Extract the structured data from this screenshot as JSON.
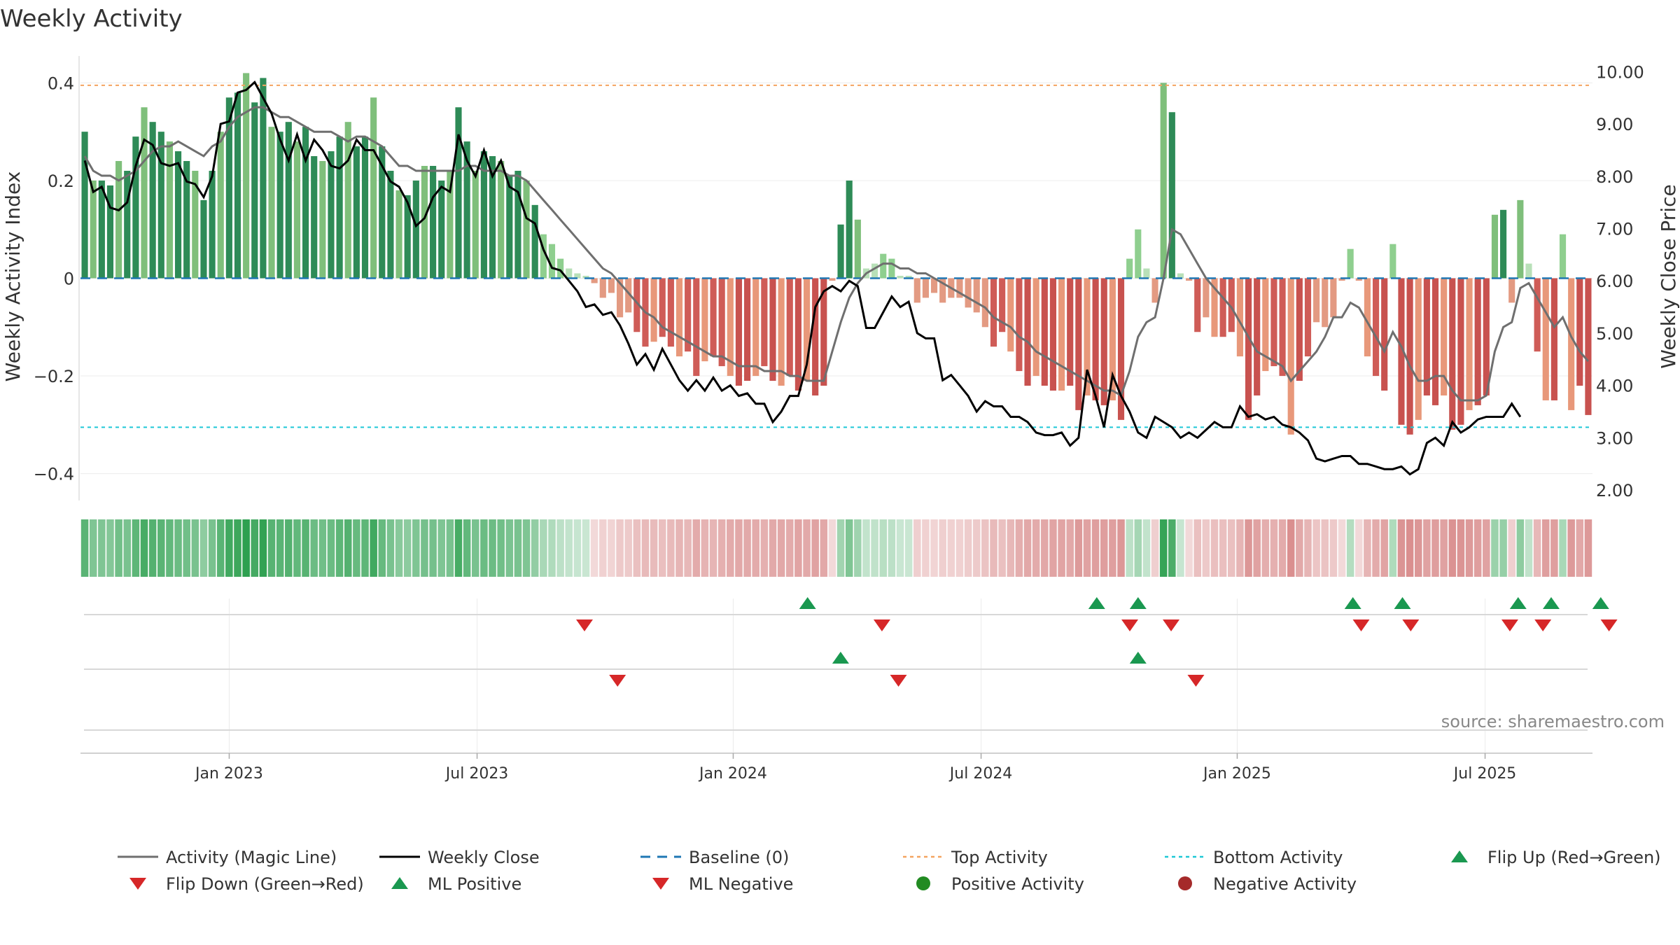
{
  "chart_data": {
    "type": "bar",
    "title": "Weekly Activity",
    "ylabel": "Weekly Activity Index",
    "y2label": "Weekly Close Price",
    "source": "source: sharemaestro.com",
    "ylim": [
      -0.455,
      0.455
    ],
    "y2lim": [
      1.8,
      10.3
    ],
    "yticks": [
      {
        "v": 0.4,
        "label": "0.4"
      },
      {
        "v": 0.2,
        "label": "0.2"
      },
      {
        "v": 0,
        "label": "0"
      },
      {
        "v": -0.2,
        "label": "−0.2"
      },
      {
        "v": -0.4,
        "label": "−0.4"
      }
    ],
    "y2ticks": [
      {
        "v": 10,
        "label": "10.00"
      },
      {
        "v": 9,
        "label": "9.00"
      },
      {
        "v": 8,
        "label": "8.00"
      },
      {
        "v": 7,
        "label": "7.00"
      },
      {
        "v": 6,
        "label": "6.00"
      },
      {
        "v": 5,
        "label": "5.00"
      },
      {
        "v": 4,
        "label": "4.00"
      },
      {
        "v": 3,
        "label": "3.00"
      },
      {
        "v": 2,
        "label": "2.00"
      }
    ],
    "xticks": [
      {
        "week": 18,
        "label": "Jan 2023"
      },
      {
        "week": 48,
        "label": "Jul 2023"
      },
      {
        "week": 79,
        "label": "Jan 2024"
      },
      {
        "week": 109,
        "label": "Jul 2024"
      },
      {
        "week": 140,
        "label": "Jan 2025"
      },
      {
        "week": 170,
        "label": "Jul 2025"
      }
    ],
    "weeks": 183,
    "top_activity": 0.395,
    "bottom_activity": -0.305,
    "activity": [
      0.3,
      0.2,
      0.2,
      0.19,
      0.24,
      0.22,
      0.29,
      0.35,
      0.32,
      0.3,
      0.28,
      0.26,
      0.24,
      0.22,
      0.16,
      0.22,
      0.3,
      0.37,
      0.38,
      0.42,
      0.36,
      0.41,
      0.31,
      0.3,
      0.32,
      0.28,
      0.31,
      0.25,
      0.24,
      0.26,
      0.29,
      0.32,
      0.27,
      0.29,
      0.37,
      0.27,
      0.22,
      0.18,
      0.17,
      0.2,
      0.23,
      0.23,
      0.2,
      0.22,
      0.35,
      0.28,
      0.22,
      0.26,
      0.25,
      0.24,
      0.21,
      0.22,
      0.2,
      0.15,
      0.09,
      0.07,
      0.04,
      0.02,
      0.01,
      0.005,
      -0.01,
      -0.04,
      -0.03,
      -0.08,
      -0.07,
      -0.11,
      -0.14,
      -0.13,
      -0.12,
      -0.14,
      -0.16,
      -0.15,
      -0.2,
      -0.17,
      -0.16,
      -0.18,
      -0.2,
      -0.22,
      -0.21,
      -0.2,
      -0.18,
      -0.21,
      -0.22,
      -0.2,
      -0.23,
      -0.21,
      -0.24,
      -0.22,
      -0.005,
      0.11,
      0.2,
      0.12,
      0.02,
      0.03,
      0.05,
      0.04,
      0.005,
      0.005,
      -0.05,
      -0.04,
      -0.03,
      -0.05,
      -0.04,
      -0.04,
      -0.06,
      -0.07,
      -0.1,
      -0.14,
      -0.11,
      -0.15,
      -0.19,
      -0.22,
      -0.2,
      -0.22,
      -0.23,
      -0.23,
      -0.22,
      -0.27,
      -0.24,
      -0.25,
      -0.26,
      -0.25,
      -0.29,
      0.04,
      0.1,
      0.02,
      -0.05,
      0.4,
      0.34,
      0.01,
      -0.005,
      -0.11,
      -0.08,
      -0.12,
      -0.12,
      -0.11,
      -0.16,
      -0.29,
      -0.24,
      -0.19,
      -0.18,
      -0.2,
      -0.32,
      -0.21,
      -0.16,
      -0.09,
      -0.1,
      -0.08,
      -0.005,
      0.06,
      -0.005,
      -0.16,
      -0.2,
      -0.23,
      0.07,
      -0.3,
      -0.32,
      -0.29,
      -0.24,
      -0.26,
      -0.24,
      -0.31,
      -0.3,
      -0.27,
      -0.26,
      -0.24,
      0.13,
      0.14,
      -0.05,
      0.16,
      0.03,
      -0.15,
      -0.25,
      -0.25,
      0.09,
      -0.27,
      -0.22,
      -0.28
    ],
    "magic_line": [
      0.25,
      0.22,
      0.21,
      0.21,
      0.2,
      0.21,
      0.22,
      0.24,
      0.26,
      0.27,
      0.27,
      0.28,
      0.27,
      0.26,
      0.25,
      0.27,
      0.28,
      0.31,
      0.33,
      0.34,
      0.35,
      0.35,
      0.34,
      0.33,
      0.33,
      0.32,
      0.31,
      0.3,
      0.3,
      0.3,
      0.29,
      0.28,
      0.29,
      0.29,
      0.28,
      0.27,
      0.25,
      0.23,
      0.23,
      0.22,
      0.22,
      0.22,
      0.22,
      0.22,
      0.22,
      0.23,
      0.23,
      0.22,
      0.22,
      0.22,
      0.21,
      0.21,
      0.2,
      0.18,
      0.16,
      0.14,
      0.12,
      0.1,
      0.08,
      0.06,
      0.04,
      0.02,
      0.01,
      -0.01,
      -0.03,
      -0.05,
      -0.07,
      -0.08,
      -0.1,
      -0.11,
      -0.12,
      -0.13,
      -0.14,
      -0.15,
      -0.16,
      -0.16,
      -0.17,
      -0.18,
      -0.18,
      -0.18,
      -0.19,
      -0.19,
      -0.19,
      -0.2,
      -0.2,
      -0.21,
      -0.21,
      -0.21,
      -0.15,
      -0.09,
      -0.04,
      -0.01,
      0.01,
      0.02,
      0.03,
      0.03,
      0.02,
      0.02,
      0.01,
      0.01,
      0.0,
      -0.01,
      -0.02,
      -0.03,
      -0.04,
      -0.05,
      -0.06,
      -0.08,
      -0.09,
      -0.1,
      -0.12,
      -0.13,
      -0.15,
      -0.16,
      -0.17,
      -0.18,
      -0.19,
      -0.2,
      -0.21,
      -0.22,
      -0.23,
      -0.23,
      -0.24,
      -0.19,
      -0.12,
      -0.09,
      -0.08,
      0.0,
      0.1,
      0.09,
      0.06,
      0.03,
      0.0,
      -0.02,
      -0.04,
      -0.06,
      -0.09,
      -0.12,
      -0.15,
      -0.16,
      -0.17,
      -0.18,
      -0.21,
      -0.19,
      -0.17,
      -0.15,
      -0.12,
      -0.08,
      -0.08,
      -0.05,
      -0.06,
      -0.09,
      -0.12,
      -0.15,
      -0.11,
      -0.14,
      -0.18,
      -0.21,
      -0.21,
      -0.2,
      -0.2,
      -0.23,
      -0.25,
      -0.25,
      -0.25,
      -0.24,
      -0.15,
      -0.1,
      -0.09,
      -0.02,
      -0.01,
      -0.04,
      -0.07,
      -0.1,
      -0.08,
      -0.12,
      -0.15,
      -0.17
    ],
    "weekly_close": [
      8.3,
      7.7,
      7.8,
      7.4,
      7.35,
      7.5,
      8.2,
      8.7,
      8.6,
      8.25,
      8.2,
      8.25,
      7.9,
      7.85,
      7.6,
      8.0,
      9.0,
      9.05,
      9.6,
      9.65,
      9.8,
      9.5,
      9.2,
      8.7,
      8.3,
      8.8,
      8.3,
      8.7,
      8.5,
      8.2,
      8.15,
      8.3,
      8.7,
      8.5,
      8.5,
      8.2,
      7.9,
      7.8,
      7.5,
      7.05,
      7.2,
      7.6,
      7.8,
      7.7,
      8.8,
      8.3,
      8.0,
      8.5,
      8.0,
      8.3,
      7.8,
      7.7,
      7.2,
      7.1,
      6.6,
      6.25,
      6.2,
      6.0,
      5.8,
      5.5,
      5.55,
      5.35,
      5.4,
      5.15,
      4.8,
      4.4,
      4.6,
      4.3,
      4.7,
      4.4,
      4.1,
      3.9,
      4.1,
      3.9,
      4.15,
      3.9,
      4.0,
      3.8,
      3.85,
      3.65,
      3.65,
      3.3,
      3.5,
      3.8,
      3.8,
      4.4,
      5.5,
      5.8,
      5.9,
      5.8,
      6.0,
      5.9,
      5.1,
      5.1,
      5.4,
      5.7,
      5.5,
      5.6,
      5.0,
      4.9,
      4.9,
      4.1,
      4.2,
      4.0,
      3.8,
      3.5,
      3.7,
      3.6,
      3.6,
      3.4,
      3.4,
      3.3,
      3.1,
      3.05,
      3.05,
      3.1,
      2.85,
      3.0,
      4.3,
      3.8,
      3.2,
      4.2,
      3.8,
      3.5,
      3.1,
      3.0,
      3.4,
      3.3,
      3.2,
      3.0,
      3.1,
      3.0,
      3.15,
      3.3,
      3.2,
      3.2,
      3.6,
      3.4,
      3.45,
      3.35,
      3.4,
      3.25,
      3.2,
      3.1,
      2.95,
      2.6,
      2.55,
      2.6,
      2.65,
      2.65,
      2.5,
      2.5,
      2.45,
      2.4,
      2.4,
      2.45,
      2.3,
      2.4,
      2.9,
      3.0,
      2.85,
      3.3,
      3.1,
      3.2,
      3.35,
      3.4,
      3.4,
      3.4,
      3.65,
      3.4
    ],
    "flip_up_weeks": [
      88,
      123,
      128,
      154,
      160,
      174,
      178,
      184
    ],
    "flip_down_weeks": [
      61,
      97,
      127,
      132,
      155,
      161,
      173,
      177,
      185
    ],
    "ml_positive_weeks": [
      92,
      128
    ],
    "ml_negative_weeks": [
      65,
      99,
      135
    ],
    "legend": [
      {
        "key": "magic",
        "label": "Activity (Magic Line)",
        "color": "#6f6f6f"
      },
      {
        "key": "close",
        "label": "Weekly Close",
        "color": "#000000"
      },
      {
        "key": "baseline",
        "label": "Baseline (0)",
        "color": "#1f77b4"
      },
      {
        "key": "top",
        "label": "Top Activity",
        "color": "#f4a460"
      },
      {
        "key": "bottom",
        "label": "Bottom Activity",
        "color": "#1ec8d6"
      },
      {
        "key": "flipup",
        "label": "Flip Up (Red→Green)",
        "color": "#1a9850"
      },
      {
        "key": "flipdown",
        "label": "Flip Down (Green→Red)",
        "color": "#d62728"
      },
      {
        "key": "mlpos",
        "label": "ML Positive",
        "color": "#1a9850"
      },
      {
        "key": "mlneg",
        "label": "ML Negative",
        "color": "#d62728"
      },
      {
        "key": "posact",
        "label": "Positive Activity",
        "color": "#228b22"
      },
      {
        "key": "negact",
        "label": "Negative Activity",
        "color": "#a52a2a"
      }
    ]
  }
}
